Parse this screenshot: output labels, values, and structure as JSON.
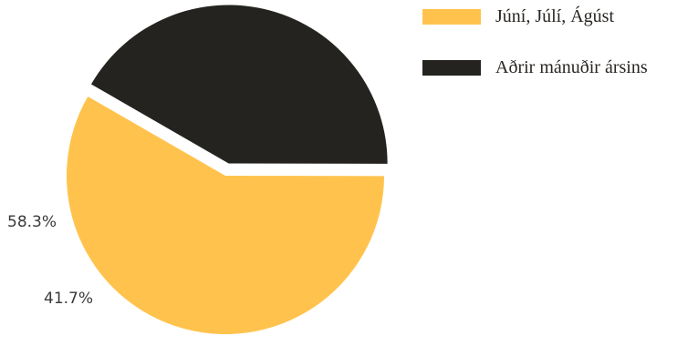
{
  "chart_data": {
    "type": "pie",
    "title": "",
    "series": [
      {
        "name": "Júní, Júlí, Ágúst",
        "value": 58.3,
        "label": "58.3%",
        "color": "#ffc34d"
      },
      {
        "name": "Aðrir mánuðir ársins",
        "value": 41.7,
        "label": "41.7%",
        "color": "#24231f"
      }
    ],
    "legend_position": "top-right"
  }
}
